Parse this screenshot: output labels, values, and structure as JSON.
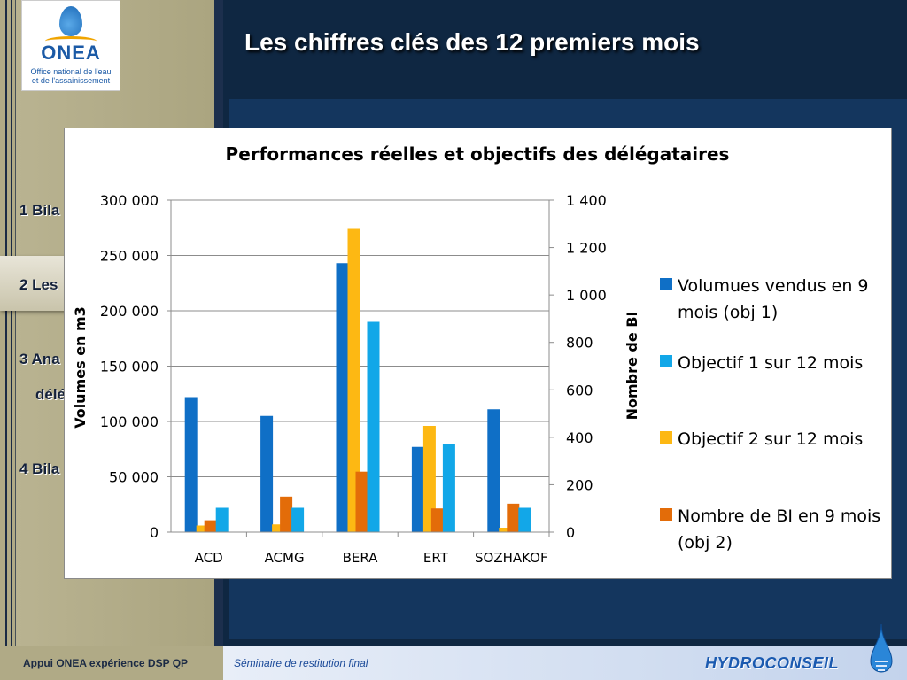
{
  "slide": {
    "title": "Les chiffres clés des 12 premiers mois"
  },
  "logo": {
    "brand": "ONEA",
    "subtitle_line1": "Office national de l'eau",
    "subtitle_line2": "et de l'assainissement"
  },
  "nav": {
    "items": [
      {
        "label": "1 Bila"
      },
      {
        "label": "2 Les"
      },
      {
        "label": "3 Ana"
      },
      {
        "label": "délé"
      },
      {
        "label": "4 Bila"
      }
    ]
  },
  "footer": {
    "left": "Appui ONEA expérience DSP QP",
    "center": "Séminaire de restitution final",
    "brand": "HYDROCONSEIL"
  },
  "colors": {
    "volumes": "#0f6fc6",
    "objectif1": "#12a7e8",
    "objectif2": "#fdb813",
    "nombre_bi": "#e36c09"
  },
  "chart_data": {
    "type": "bar",
    "title": "Performances réelles et objectifs des délégataires",
    "categories": [
      "ACD",
      "ACMG",
      "BERA",
      "ERT",
      "SOZHAKOF"
    ],
    "ylabel": "Volumes en m3",
    "y2label": "Nombre de BI",
    "ylim": [
      0,
      300000
    ],
    "y2lim": [
      0,
      1400
    ],
    "yticks": [
      "0",
      "50 000",
      "100 000",
      "150 000",
      "200 000",
      "250 000",
      "300 000"
    ],
    "y2ticks": [
      "0",
      "200",
      "400",
      "600",
      "800",
      "1 000",
      "1 200",
      "1 400"
    ],
    "grid": true,
    "legend_position": "right",
    "series": [
      {
        "name": "Volumes vendus en 9 mois (obj 1)",
        "axis": "left",
        "values": [
          122000,
          105000,
          243000,
          77000,
          111000
        ]
      },
      {
        "name": "Objectif 2 sur 12 mois",
        "axis": "left",
        "values": [
          6000,
          7000,
          274000,
          96000,
          4000
        ]
      },
      {
        "name": "Nombre de BI en 9 mois (obj 2)",
        "axis": "right",
        "values": [
          50,
          150,
          255,
          100,
          120
        ]
      },
      {
        "name": "Objectif 1 sur 12 mois",
        "axis": "left",
        "values": [
          22000,
          22000,
          190000,
          80000,
          22000
        ]
      }
    ],
    "legend": [
      "Volumues vendus en 9 mois (obj 1)",
      "Objectif 1 sur 12 mois",
      "Objectif 2 sur 12 mois",
      "Nombre de BI en 9 mois (obj 2)"
    ]
  }
}
